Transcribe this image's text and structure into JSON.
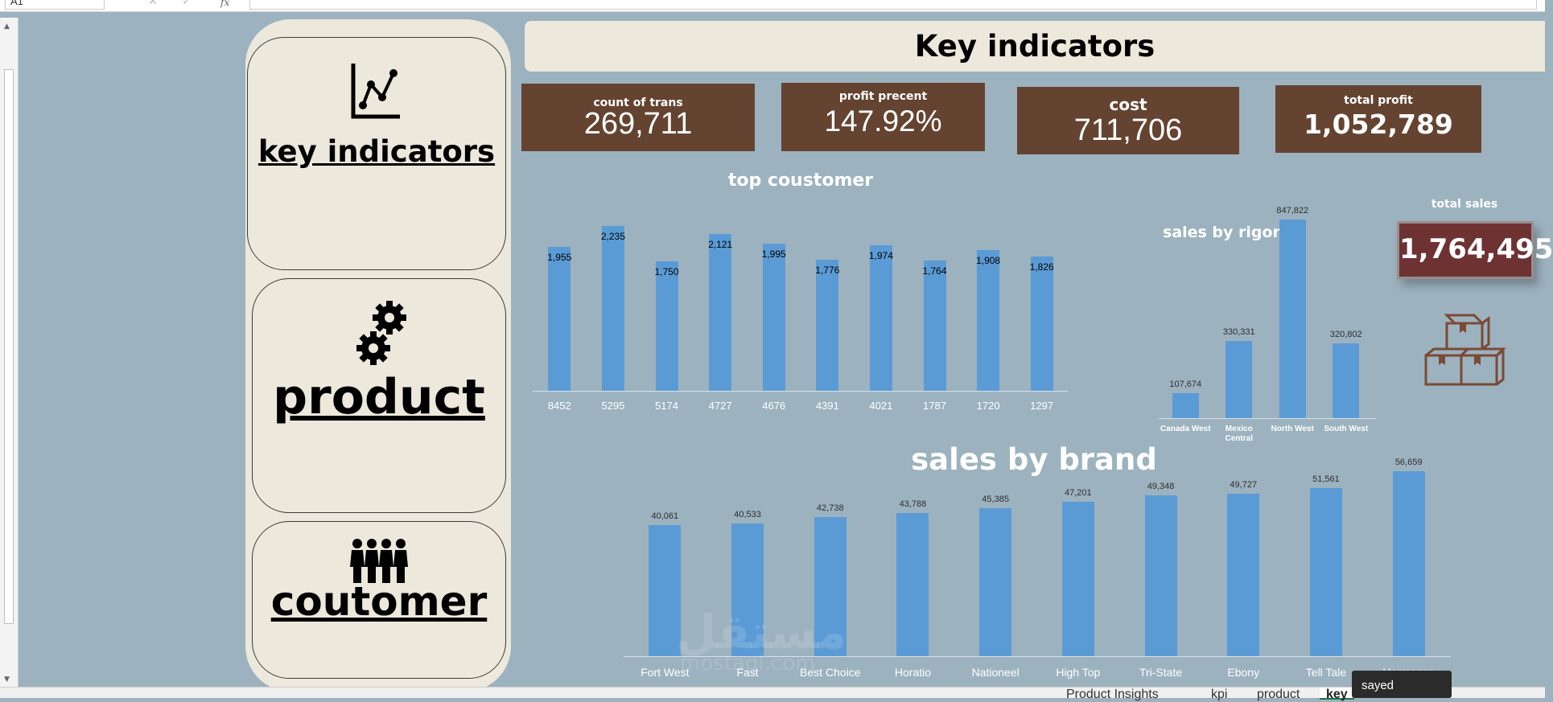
{
  "formula_bar": {
    "name_box": "A1",
    "fx": "fx"
  },
  "nav": {
    "key_indicators_label": "key indicators",
    "product_label": "product",
    "customer_label": "coutomer"
  },
  "header": {
    "title": "Key indicators"
  },
  "kpis": [
    {
      "label": "count of trans",
      "value": "269,711"
    },
    {
      "label": "profit precent",
      "value": "147.92%"
    },
    {
      "label": "cost",
      "value": "711,706"
    },
    {
      "label": "total profit",
      "value": "1,052,789"
    }
  ],
  "total_sales": {
    "label": "total sales",
    "value": "1,764,495"
  },
  "colors": {
    "background": "#9cb2bf",
    "panel": "#ede8dc",
    "kpi": "#654331",
    "bar": "#5b9bd5",
    "total_card": "#6e3232"
  },
  "icons": [
    "line-chart-icon",
    "gears-icon",
    "people-icon",
    "boxes-icon"
  ],
  "chart_data": [
    {
      "type": "bar",
      "title": "top coustomer",
      "categories": [
        "8452",
        "5295",
        "5174",
        "4727",
        "4676",
        "4391",
        "4021",
        "1787",
        "1720",
        "1297"
      ],
      "values": [
        1955,
        2235,
        1750,
        2121,
        1995,
        1776,
        1974,
        1764,
        1908,
        1826
      ],
      "labels": [
        "1,955",
        "2,235",
        "1,750",
        "2,121",
        "1,995",
        "1,776",
        "1,974",
        "1,764",
        "1,908",
        "1,826"
      ],
      "ylim": [
        0,
        2300
      ]
    },
    {
      "type": "bar",
      "title": "sales by rigon",
      "categories": [
        "Canada West",
        "Mexico Central",
        "North West",
        "South West"
      ],
      "values": [
        107674,
        330331,
        847822,
        320802
      ],
      "labels": [
        "107,674",
        "330,331",
        "847,822",
        "320,802"
      ],
      "ylim": [
        0,
        850000
      ]
    },
    {
      "type": "bar",
      "title": "sales by brand",
      "categories": [
        "Fort West",
        "Fast",
        "Best Choice",
        "Horatio",
        "Nationeel",
        "High Top",
        "Tri-State",
        "Ebony",
        "Tell Tale",
        "Hermanos"
      ],
      "values": [
        40061,
        40533,
        42738,
        43788,
        45385,
        47201,
        49348,
        49727,
        51561,
        56659
      ],
      "labels": [
        "40,061",
        "40,533",
        "42,738",
        "43,788",
        "45,385",
        "47,201",
        "49,348",
        "49,727",
        "51,561",
        "56,659"
      ],
      "ylim": [
        0,
        70000
      ]
    }
  ],
  "watermark": {
    "text": "مستقل",
    "sub": "mostaql.com"
  },
  "sheet_tabs": [
    "Product Insights",
    "kpi",
    "product",
    "key"
  ],
  "tooltip": "sayed"
}
